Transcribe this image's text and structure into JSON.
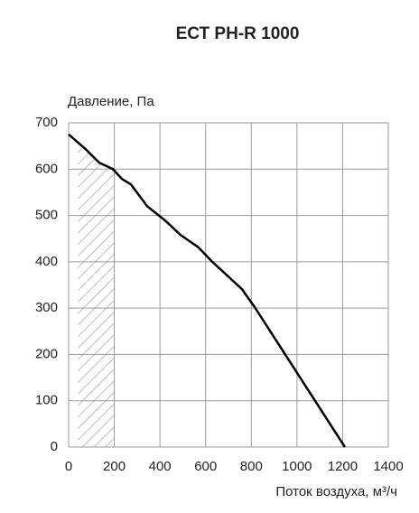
{
  "chart_data": {
    "type": "line",
    "title": "ЕСТ PH-R 1000",
    "y_label": "Давление, Па",
    "x_label": "Поток воздуха, м³/ч",
    "x": [
      0,
      75,
      134,
      194,
      233,
      273,
      344,
      423,
      490,
      569,
      629,
      759,
      815,
      1210
    ],
    "values": [
      675,
      643,
      614,
      600,
      579,
      567,
      520,
      489,
      458,
      431,
      400,
      341,
      302,
      0
    ],
    "color": "#000000",
    "shaded_xrange": [
      40,
      200
    ],
    "xlim": [
      0,
      1400
    ],
    "xticks": [
      0,
      200,
      400,
      600,
      800,
      1000,
      1200,
      1400
    ],
    "ylim": [
      0,
      700
    ],
    "yticks": [
      0,
      100,
      200,
      300,
      400,
      500,
      600,
      700
    ],
    "grid": true
  }
}
